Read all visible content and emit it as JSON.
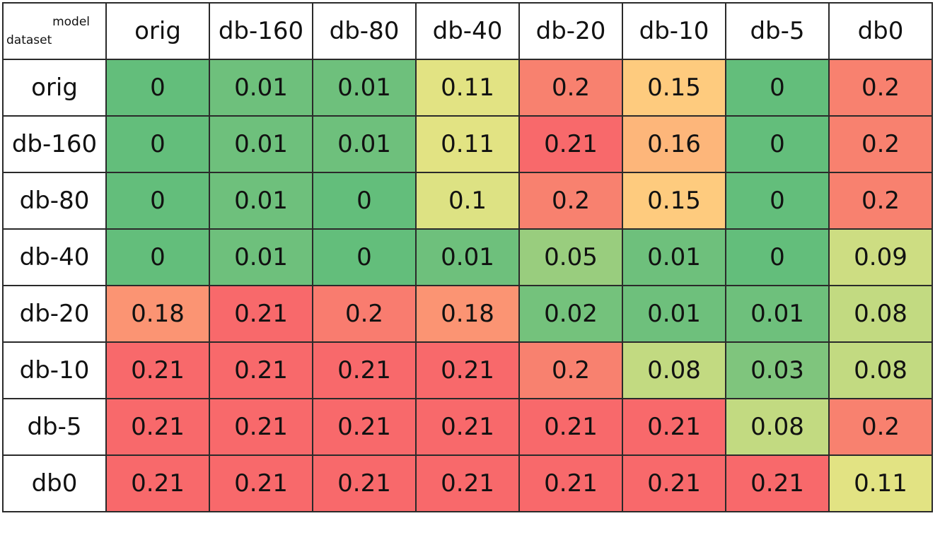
{
  "chart_data": {
    "type": "heatmap",
    "corner_labels": {
      "column_axis": "model",
      "row_axis": "dataset"
    },
    "columns": [
      "orig",
      "db-160",
      "db-80",
      "db-40",
      "db-20",
      "db-10",
      "db-5",
      "db0"
    ],
    "rows": [
      "orig",
      "db-160",
      "db-80",
      "db-40",
      "db-20",
      "db-10",
      "db-5",
      "db0"
    ],
    "values": [
      [
        0,
        0.01,
        0.01,
        0.11,
        0.2,
        0.15,
        0,
        0.2
      ],
      [
        0,
        0.01,
        0.01,
        0.11,
        0.21,
        0.16,
        0,
        0.2
      ],
      [
        0,
        0.01,
        0,
        0.1,
        0.2,
        0.15,
        0,
        0.2
      ],
      [
        0,
        0.01,
        0,
        0.01,
        0.05,
        0.01,
        0,
        0.09
      ],
      [
        0.18,
        0.21,
        0.2,
        0.18,
        0.02,
        0.01,
        0.01,
        0.08
      ],
      [
        0.21,
        0.21,
        0.21,
        0.21,
        0.2,
        0.08,
        0.03,
        0.08
      ],
      [
        0.21,
        0.21,
        0.21,
        0.21,
        0.21,
        0.21,
        0.08,
        0.2
      ],
      [
        0.21,
        0.21,
        0.21,
        0.21,
        0.21,
        0.21,
        0.21,
        0.11
      ]
    ],
    "color_scale": {
      "low": "#63be7b",
      "mid": "#ffe084",
      "high": "#f8696b"
    },
    "cell_colors": [
      [
        "#63be7b",
        "#6ec07c",
        "#6ec07c",
        "#e2e383",
        "#f8816f",
        "#fecb7e",
        "#63be7b",
        "#f8816f"
      ],
      [
        "#63be7b",
        "#6ec07c",
        "#6ec07c",
        "#e2e383",
        "#f8696b",
        "#fdb67a",
        "#63be7b",
        "#f8816f"
      ],
      [
        "#63be7b",
        "#6ec07c",
        "#63be7b",
        "#dde283",
        "#f8816f",
        "#fecb7e",
        "#63be7b",
        "#f8816f"
      ],
      [
        "#63be7b",
        "#6ec07c",
        "#63be7b",
        "#6ec07c",
        "#99cd7e",
        "#6ec07c",
        "#63be7b",
        "#cddd82"
      ],
      [
        "#fb9473",
        "#f8696b",
        "#f97c6f",
        "#fb9473",
        "#74c27c",
        "#6ec07c",
        "#6ec07c",
        "#c2da81"
      ],
      [
        "#f8696b",
        "#f8696b",
        "#f8696b",
        "#f8696b",
        "#f8816f",
        "#c2da81",
        "#7fc57d",
        "#c2da81"
      ],
      [
        "#f8696b",
        "#f8696b",
        "#f8696b",
        "#f8696b",
        "#f8696b",
        "#f8696b",
        "#c2da81",
        "#f8816f"
      ],
      [
        "#f8696b",
        "#f8696b",
        "#f8696b",
        "#f8696b",
        "#f8696b",
        "#f8696b",
        "#f8696b",
        "#e2e383"
      ]
    ]
  }
}
